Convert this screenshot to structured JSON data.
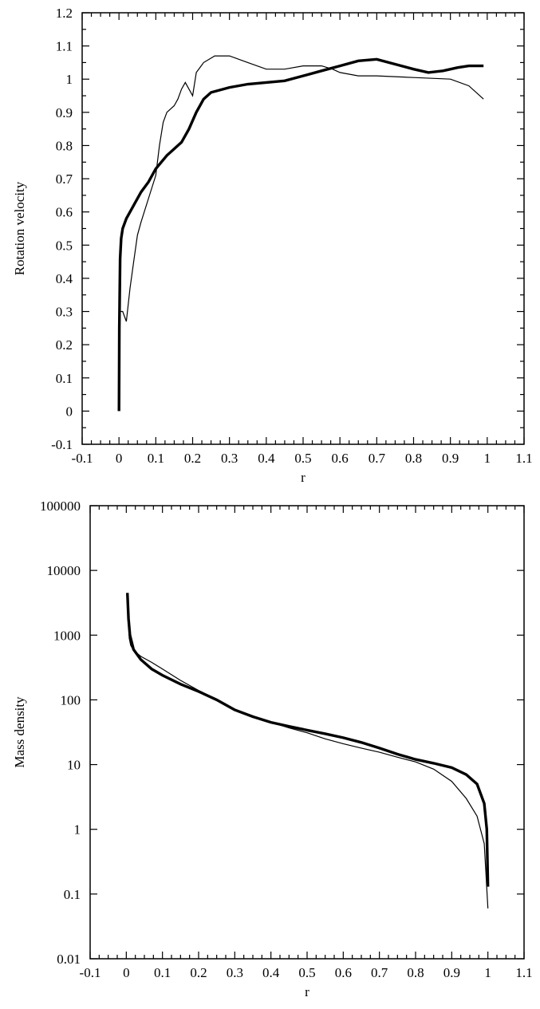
{
  "chart_data": [
    {
      "type": "line",
      "title": "",
      "xlabel": "r",
      "ylabel": "Rotation velocity",
      "xlim": [
        -0.1,
        1.1
      ],
      "ylim": [
        -0.1,
        1.2
      ],
      "x_ticks": [
        "-0.1",
        "0",
        "0.1",
        "0.2",
        "0.3",
        "0.4",
        "0.5",
        "0.6",
        "0.7",
        "0.8",
        "0.9",
        "1",
        "1.1"
      ],
      "y_ticks": [
        "-0.1",
        "0",
        "0.1",
        "0.2",
        "0.3",
        "0.4",
        "0.5",
        "0.6",
        "0.7",
        "0.8",
        "0.9",
        "1",
        "1.1",
        "1.2"
      ],
      "grid": false,
      "series": [
        {
          "style": "thin",
          "points": [
            [
              0.0,
              0.05
            ],
            [
              0.003,
              0.3
            ],
            [
              0.01,
              0.3
            ],
            [
              0.02,
              0.27
            ],
            [
              0.03,
              0.37
            ],
            [
              0.04,
              0.45
            ],
            [
              0.05,
              0.53
            ],
            [
              0.06,
              0.57
            ],
            [
              0.08,
              0.64
            ],
            [
              0.1,
              0.71
            ],
            [
              0.11,
              0.8
            ],
            [
              0.12,
              0.87
            ],
            [
              0.13,
              0.9
            ],
            [
              0.15,
              0.92
            ],
            [
              0.16,
              0.94
            ],
            [
              0.17,
              0.97
            ],
            [
              0.18,
              0.99
            ],
            [
              0.19,
              0.97
            ],
            [
              0.2,
              0.95
            ],
            [
              0.21,
              1.02
            ],
            [
              0.23,
              1.05
            ],
            [
              0.26,
              1.07
            ],
            [
              0.3,
              1.07
            ],
            [
              0.35,
              1.05
            ],
            [
              0.4,
              1.03
            ],
            [
              0.45,
              1.03
            ],
            [
              0.5,
              1.04
            ],
            [
              0.55,
              1.04
            ],
            [
              0.58,
              1.03
            ],
            [
              0.6,
              1.02
            ],
            [
              0.65,
              1.01
            ],
            [
              0.7,
              1.01
            ],
            [
              0.8,
              1.005
            ],
            [
              0.9,
              1.0
            ],
            [
              0.95,
              0.98
            ],
            [
              0.99,
              0.94
            ]
          ]
        },
        {
          "style": "thick",
          "points": [
            [
              0.0,
              0.0
            ],
            [
              0.001,
              0.25
            ],
            [
              0.003,
              0.46
            ],
            [
              0.006,
              0.52
            ],
            [
              0.01,
              0.55
            ],
            [
              0.02,
              0.58
            ],
            [
              0.04,
              0.62
            ],
            [
              0.06,
              0.66
            ],
            [
              0.08,
              0.69
            ],
            [
              0.1,
              0.73
            ],
            [
              0.13,
              0.77
            ],
            [
              0.15,
              0.79
            ],
            [
              0.17,
              0.81
            ],
            [
              0.19,
              0.85
            ],
            [
              0.21,
              0.9
            ],
            [
              0.23,
              0.94
            ],
            [
              0.25,
              0.96
            ],
            [
              0.3,
              0.975
            ],
            [
              0.35,
              0.985
            ],
            [
              0.4,
              0.99
            ],
            [
              0.45,
              0.995
            ],
            [
              0.5,
              1.01
            ],
            [
              0.55,
              1.025
            ],
            [
              0.6,
              1.04
            ],
            [
              0.65,
              1.055
            ],
            [
              0.7,
              1.06
            ],
            [
              0.75,
              1.045
            ],
            [
              0.8,
              1.03
            ],
            [
              0.84,
              1.02
            ],
            [
              0.88,
              1.025
            ],
            [
              0.92,
              1.035
            ],
            [
              0.95,
              1.04
            ],
            [
              0.99,
              1.04
            ]
          ]
        }
      ]
    },
    {
      "type": "line",
      "title": "",
      "xlabel": "r",
      "ylabel": "Mass density",
      "yscale": "log",
      "xlim": [
        -0.1,
        1.1
      ],
      "ylim": [
        0.01,
        100000
      ],
      "x_ticks": [
        "-0.1",
        "0",
        "0.1",
        "0.2",
        "0.3",
        "0.4",
        "0.5",
        "0.6",
        "0.7",
        "0.8",
        "0.9",
        "1",
        "1.1"
      ],
      "y_ticks": [
        "0.01",
        "0.1",
        "1",
        "10",
        "100",
        "1000",
        "10000",
        "100000"
      ],
      "grid": false,
      "series": [
        {
          "style": "thin",
          "points": [
            [
              0.005,
              2000
            ],
            [
              0.008,
              900
            ],
            [
              0.012,
              700
            ],
            [
              0.02,
              580
            ],
            [
              0.04,
              470
            ],
            [
              0.07,
              380
            ],
            [
              0.1,
              300
            ],
            [
              0.15,
              200
            ],
            [
              0.2,
              140
            ],
            [
              0.25,
              100
            ],
            [
              0.3,
              70
            ],
            [
              0.35,
              55
            ],
            [
              0.4,
              45
            ],
            [
              0.45,
              37
            ],
            [
              0.5,
              31
            ],
            [
              0.55,
              25
            ],
            [
              0.6,
              21
            ],
            [
              0.65,
              18
            ],
            [
              0.7,
              15.5
            ],
            [
              0.75,
              13
            ],
            [
              0.8,
              11
            ],
            [
              0.85,
              8.5
            ],
            [
              0.9,
              5.5
            ],
            [
              0.94,
              3
            ],
            [
              0.97,
              1.6
            ],
            [
              0.99,
              0.6
            ],
            [
              1.0,
              0.06
            ]
          ]
        },
        {
          "style": "thick",
          "points": [
            [
              0.003,
              4500
            ],
            [
              0.006,
              1800
            ],
            [
              0.01,
              1000
            ],
            [
              0.02,
              600
            ],
            [
              0.04,
              420
            ],
            [
              0.07,
              300
            ],
            [
              0.1,
              240
            ],
            [
              0.15,
              175
            ],
            [
              0.2,
              135
            ],
            [
              0.25,
              100
            ],
            [
              0.3,
              70
            ],
            [
              0.35,
              55
            ],
            [
              0.4,
              45
            ],
            [
              0.45,
              39
            ],
            [
              0.5,
              34
            ],
            [
              0.55,
              30
            ],
            [
              0.6,
              26
            ],
            [
              0.65,
              22
            ],
            [
              0.7,
              18
            ],
            [
              0.75,
              14.5
            ],
            [
              0.8,
              12
            ],
            [
              0.85,
              10.5
            ],
            [
              0.9,
              9
            ],
            [
              0.94,
              7
            ],
            [
              0.97,
              5
            ],
            [
              0.99,
              2.5
            ],
            [
              0.997,
              1.0
            ],
            [
              1.0,
              0.13
            ]
          ]
        }
      ]
    }
  ]
}
